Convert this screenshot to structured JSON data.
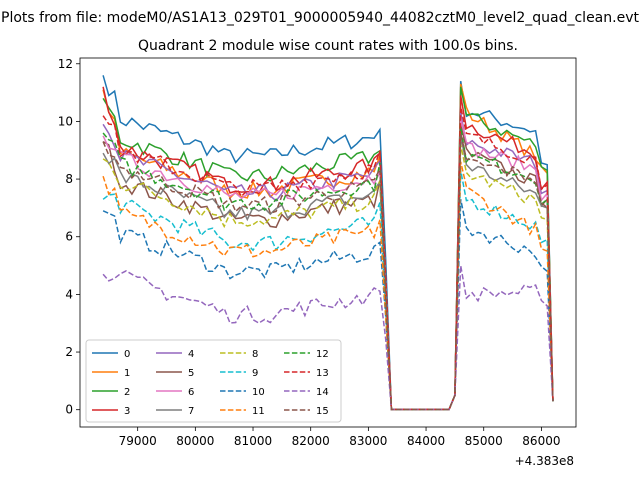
{
  "figure": {
    "suptitle": "Plots from file: modeM0/AS1A13_029T01_9000005940_44082cztM0_level2_quad_clean.evt"
  },
  "chart_data": {
    "type": "line",
    "title": "Quadrant 2 module wise count rates with 100.0s bins.",
    "xlabel": "",
    "ylabel": "",
    "x_offset_label": "+4.383e8",
    "x_offset": 438300000,
    "xlim": [
      78000,
      86600
    ],
    "ylim": [
      -0.6,
      12.2
    ],
    "xticks": [
      79000,
      80000,
      81000,
      82000,
      83000,
      84000,
      85000,
      86000
    ],
    "xtick_labels": [
      "79000",
      "80000",
      "81000",
      "82000",
      "83000",
      "84000",
      "85000",
      "86000"
    ],
    "yticks": [
      0,
      2,
      4,
      6,
      8,
      10,
      12
    ],
    "ytick_labels": [
      "0",
      "2",
      "4",
      "6",
      "8",
      "10",
      "12"
    ],
    "grid": false,
    "legend_position": "lower-left",
    "legend_columns": 4,
    "x_range_active": [
      78400,
      86200
    ],
    "gap": [
      83400,
      84500
    ],
    "series": [
      {
        "name": "0",
        "color": "#1f77b4",
        "dash": "solid",
        "level": 8.9,
        "start": 11.6,
        "post": 9.6,
        "post_peak": 11.4,
        "end": 8.5
      },
      {
        "name": "1",
        "color": "#ff7f0e",
        "dash": "solid",
        "level": 7.7,
        "start": 11.1,
        "post": 8.7,
        "post_peak": 11.3,
        "end": 8.2
      },
      {
        "name": "2",
        "color": "#2ca02c",
        "dash": "solid",
        "level": 8.2,
        "start": 10.8,
        "post": 9.1,
        "post_peak": 11.2,
        "end": 8.3
      },
      {
        "name": "3",
        "color": "#d62728",
        "dash": "solid",
        "level": 7.9,
        "start": 11.2,
        "post": 8.8,
        "post_peak": 10.9,
        "end": 7.9
      },
      {
        "name": "4",
        "color": "#9467bd",
        "dash": "solid",
        "level": 7.6,
        "start": 9.9,
        "post": 8.5,
        "post_peak": 10.3,
        "end": 7.6
      },
      {
        "name": "5",
        "color": "#8c564b",
        "dash": "solid",
        "level": 6.7,
        "start": 9.3,
        "post": 7.8,
        "post_peak": 9.9,
        "end": 7.3
      },
      {
        "name": "6",
        "color": "#e377c2",
        "dash": "solid",
        "level": 7.5,
        "start": 9.5,
        "post": 8.3,
        "post_peak": 10.1,
        "end": 7.5
      },
      {
        "name": "7",
        "color": "#7f7f7f",
        "dash": "solid",
        "level": 6.9,
        "start": 8.9,
        "post": 7.4,
        "post_peak": 9.5,
        "end": 7.0
      },
      {
        "name": "8",
        "color": "#bcbd22",
        "dash": "dashed",
        "level": 6.7,
        "start": 8.7,
        "post": 7.2,
        "post_peak": 9.2,
        "end": 6.6
      },
      {
        "name": "9",
        "color": "#17becf",
        "dash": "dashed",
        "level": 5.9,
        "start": 7.3,
        "post": 6.3,
        "post_peak": 8.3,
        "end": 5.9
      },
      {
        "name": "10",
        "color": "#1f77b4",
        "dash": "dashed",
        "level": 4.9,
        "start": 6.9,
        "post": 5.4,
        "post_peak": 7.3,
        "end": 4.8
      },
      {
        "name": "11",
        "color": "#ff7f0e",
        "dash": "dashed",
        "level": 5.6,
        "start": 8.1,
        "post": 6.1,
        "post_peak": 8.6,
        "end": 5.5
      },
      {
        "name": "12",
        "color": "#2ca02c",
        "dash": "dashed",
        "level": 7.3,
        "start": 9.6,
        "post": 8.0,
        "post_peak": 9.8,
        "end": 7.3
      },
      {
        "name": "13",
        "color": "#d62728",
        "dash": "dashed",
        "level": 7.8,
        "start": 10.2,
        "post": 8.6,
        "post_peak": 10.5,
        "end": 7.8
      },
      {
        "name": "14",
        "color": "#9467bd",
        "dash": "dashed",
        "level": 3.4,
        "start": 4.7,
        "post": 4.1,
        "post_peak": 5.0,
        "end": 3.6
      },
      {
        "name": "15",
        "color": "#8c564b",
        "dash": "dashed",
        "level": 7.2,
        "start": 9.3,
        "post": 8.0,
        "post_peak": 9.6,
        "end": 7.0
      }
    ]
  }
}
